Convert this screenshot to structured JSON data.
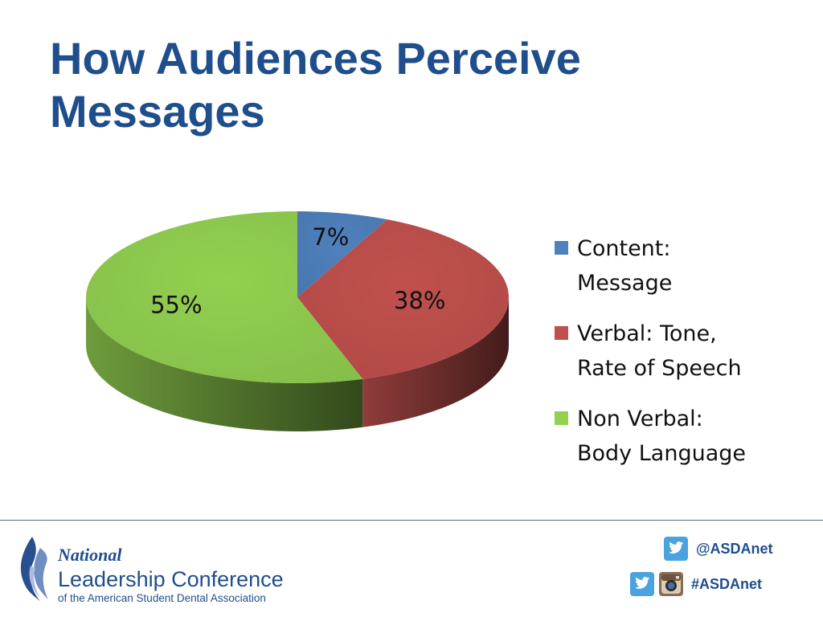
{
  "slide": {
    "title_line1": "How Audiences Perceive",
    "title_line2": "Messages"
  },
  "chart_data": {
    "type": "pie",
    "title": "",
    "slices": [
      {
        "label": "Content: Message",
        "value": 7,
        "data_label": "7%",
        "color": "#4f81bd"
      },
      {
        "label": "Verbal: Tone, Rate of Speech",
        "value": 38,
        "data_label": "38%",
        "color": "#c0504d"
      },
      {
        "label": "Non Verbal: Body Language",
        "value": 55,
        "data_label": "55%",
        "color": "#92d050"
      }
    ],
    "style": "3d",
    "legend_position": "right"
  },
  "legend": {
    "items": [
      {
        "line1": "Content:",
        "line2": "Message",
        "color": "#4f81bd"
      },
      {
        "line1": "Verbal: Tone,",
        "line2": "Rate of Speech",
        "color": "#c0504d"
      },
      {
        "line1": "Non Verbal:",
        "line2": "Body Language",
        "color": "#92d050"
      }
    ]
  },
  "footer": {
    "logo_national": "National",
    "logo_leadership": "Leadership Conference",
    "logo_subtitle": "of the American Student Dental Association",
    "twitter_handle": "@ASDAnet",
    "hashtag": "#ASDAnet",
    "twitter_icon": "twitter-icon",
    "instagram_icon": "instagram-icon"
  }
}
